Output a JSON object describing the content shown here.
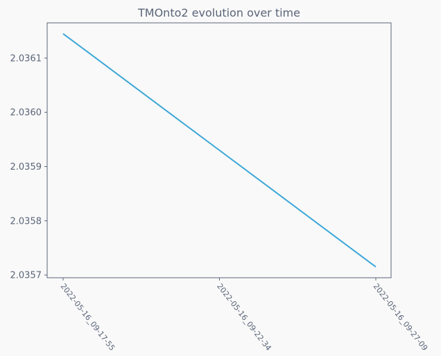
{
  "chart_data": {
    "type": "line",
    "title": "TMOnto2 evolution over time",
    "xlabel": "",
    "ylabel": "",
    "x": [
      "2022-05-16_09-17-55",
      "2022-05-16_09-22-34",
      "2022-05-16_09-27-09"
    ],
    "series": [
      {
        "values": [
          2.036145,
          2.03593,
          2.035715
        ]
      }
    ],
    "y_ticks": [
      "2.0357",
      "2.0358",
      "2.0359",
      "2.0360",
      "2.0361"
    ],
    "ylim": [
      2.035695,
      2.036165
    ],
    "grid": false,
    "colors": {
      "line": "#3aa6d8",
      "axis": "#5a6478",
      "text": "#5a6478",
      "background": "#f9f9f9"
    }
  }
}
